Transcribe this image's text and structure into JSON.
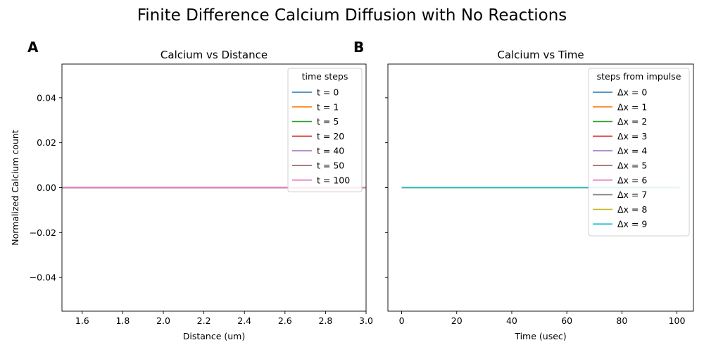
{
  "figure": {
    "title": "Finite Difference Calcium Diffusion with No Reactions"
  },
  "chart_data": [
    {
      "panel_label": "A",
      "type": "line",
      "title": "Calcium vs Distance",
      "xlabel": "Distance (um)",
      "ylabel": "Normalized Calcium count",
      "xlim": [
        1.5,
        3.0
      ],
      "ylim": [
        -0.055,
        0.055
      ],
      "xticks": [
        1.6,
        1.8,
        2.0,
        2.2,
        2.4,
        2.6,
        2.8,
        3.0
      ],
      "xtick_labels": [
        "1.6",
        "1.8",
        "2.0",
        "2.2",
        "2.4",
        "2.6",
        "2.8",
        "3.0"
      ],
      "yticks": [
        -0.04,
        -0.02,
        0.0,
        0.02,
        0.04
      ],
      "ytick_labels": [
        "−0.04",
        "−0.02",
        "0.00",
        "0.02",
        "0.04"
      ],
      "grid": false,
      "legend_title": "time steps",
      "legend_position": "top-right",
      "series": [
        {
          "name": "t = 0",
          "color": "#1f77b4",
          "x": [
            1.5,
            3.0
          ],
          "y": [
            0,
            0
          ]
        },
        {
          "name": "t = 1",
          "color": "#ff7f0e",
          "x": [
            1.5,
            3.0
          ],
          "y": [
            0,
            0
          ]
        },
        {
          "name": "t = 5",
          "color": "#2ca02c",
          "x": [
            1.5,
            3.0
          ],
          "y": [
            0,
            0
          ]
        },
        {
          "name": "t = 20",
          "color": "#d62728",
          "x": [
            1.5,
            3.0
          ],
          "y": [
            0,
            0
          ]
        },
        {
          "name": "t = 40",
          "color": "#9467bd",
          "x": [
            1.5,
            3.0
          ],
          "y": [
            0,
            0
          ]
        },
        {
          "name": "t = 50",
          "color": "#8c564b",
          "x": [
            1.5,
            3.0
          ],
          "y": [
            0,
            0
          ]
        },
        {
          "name": "t = 100",
          "color": "#e377c2",
          "x": [
            1.5,
            3.0
          ],
          "y": [
            0,
            0
          ]
        }
      ]
    },
    {
      "panel_label": "B",
      "type": "line",
      "title": "Calcium vs Time",
      "xlabel": "Time (usec)",
      "ylabel": "",
      "xlim": [
        -5,
        106
      ],
      "ylim": [
        -0.055,
        0.055
      ],
      "xticks": [
        0,
        20,
        40,
        60,
        80,
        100
      ],
      "xtick_labels": [
        "0",
        "20",
        "40",
        "60",
        "80",
        "100"
      ],
      "yticks": [
        -0.04,
        -0.02,
        0.0,
        0.02,
        0.04
      ],
      "ytick_labels": [],
      "shared_y": true,
      "grid": false,
      "legend_title": "steps from impulse",
      "legend_position": "top-right",
      "series": [
        {
          "name": "Δx = 0",
          "color": "#1f77b4",
          "x": [
            0,
            101
          ],
          "y": [
            0,
            0
          ]
        },
        {
          "name": "Δx = 1",
          "color": "#ff7f0e",
          "x": [
            0,
            101
          ],
          "y": [
            0,
            0
          ]
        },
        {
          "name": "Δx = 2",
          "color": "#2ca02c",
          "x": [
            0,
            101
          ],
          "y": [
            0,
            0
          ]
        },
        {
          "name": "Δx = 3",
          "color": "#d62728",
          "x": [
            0,
            101
          ],
          "y": [
            0,
            0
          ]
        },
        {
          "name": "Δx = 4",
          "color": "#9467bd",
          "x": [
            0,
            101
          ],
          "y": [
            0,
            0
          ]
        },
        {
          "name": "Δx = 5",
          "color": "#8c564b",
          "x": [
            0,
            101
          ],
          "y": [
            0,
            0
          ]
        },
        {
          "name": "Δx = 6",
          "color": "#e377c2",
          "x": [
            0,
            101
          ],
          "y": [
            0,
            0
          ]
        },
        {
          "name": "Δx = 7",
          "color": "#7f7f7f",
          "x": [
            0,
            101
          ],
          "y": [
            0,
            0
          ]
        },
        {
          "name": "Δx = 8",
          "color": "#bcbd22",
          "x": [
            0,
            101
          ],
          "y": [
            0,
            0
          ]
        },
        {
          "name": "Δx = 9",
          "color": "#17becf",
          "x": [
            0,
            101
          ],
          "y": [
            0,
            0
          ]
        }
      ]
    }
  ]
}
